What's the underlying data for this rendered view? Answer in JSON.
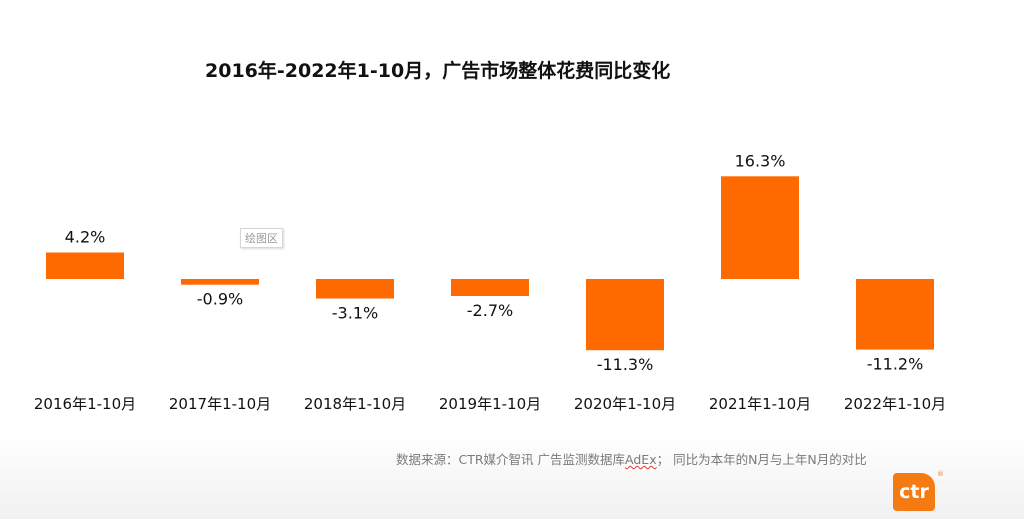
{
  "chart_data": {
    "type": "bar",
    "title": "2016年-2022年1-10月，广告市场整体花费同比变化",
    "categories": [
      "2016年1-10月",
      "2017年1-10月",
      "2018年1-10月",
      "2019年1-10月",
      "2020年1-10月",
      "2021年1-10月",
      "2022年1-10月"
    ],
    "values": [
      4.2,
      -0.9,
      -3.1,
      -2.7,
      -11.3,
      16.3,
      -11.2
    ],
    "data_labels": [
      "4.2%",
      "-0.9%",
      "-3.1%",
      "-2.7%",
      "-11.3%",
      "16.3%",
      "-11.2%"
    ],
    "unit": "%",
    "color": "#ff6a00",
    "grid": false,
    "legend": "none"
  },
  "source_prefix": "数据来源：CTR媒介智讯 广告监测数据库",
  "source_squiggle": "AdEx",
  "source_suffix": "；  同比为本年的N月与上年N月的对比",
  "tooltip_label": "绘图区",
  "logo_text": "ctr",
  "logo_mark": "®"
}
